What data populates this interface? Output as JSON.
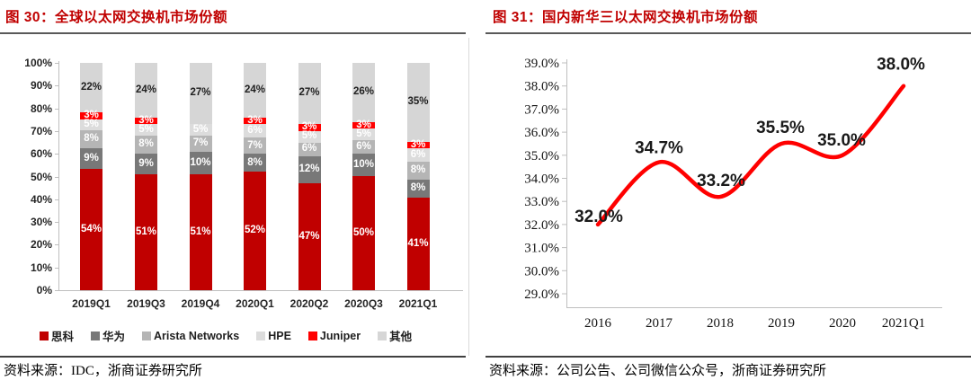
{
  "styles": {
    "title_color": "#C00000",
    "title_rule_color": "#595959",
    "footer_rule_color": "#404040",
    "axis_color": "#BFBFBF",
    "divider_color": "#D9D9D9",
    "tick_label_color": "#262626",
    "point_label_color": "#1A1A1A"
  },
  "chart_data": [
    {
      "type": "bar",
      "stacked": true,
      "percent": true,
      "title": "图 30：全球以太网交换机市场份额",
      "source": "资料来源：IDC，浙商证券研究所",
      "categories": [
        "2019Q1",
        "2019Q3",
        "2019Q4",
        "2020Q1",
        "2020Q2",
        "2020Q3",
        "2021Q1"
      ],
      "series": [
        {
          "name": "思科",
          "color": "#C00000",
          "label_color": "#FFFFFF",
          "values": [
            54,
            51,
            51,
            52,
            47,
            50,
            41
          ]
        },
        {
          "name": "华为",
          "color": "#787878",
          "label_color": "#FFFFFF",
          "values": [
            9,
            9,
            10,
            8,
            12,
            10,
            8
          ]
        },
        {
          "name": "Arista Networks",
          "color": "#B5B5B5",
          "label_color": "#FFFFFF",
          "values": [
            8,
            8,
            7,
            7,
            6,
            6,
            8
          ]
        },
        {
          "name": "HPE",
          "color": "#DCDCDC",
          "label_color": "#FFFFFF",
          "values": [
            5,
            5,
            5,
            6,
            5,
            5,
            6
          ]
        },
        {
          "name": "Juniper",
          "color": "#FF0000",
          "label_color": "#FFFFFF",
          "values": [
            3,
            3,
            0,
            3,
            3,
            3,
            3
          ]
        },
        {
          "name": "其他",
          "color": "#D6D6D6",
          "label_color": "#1F1F1F",
          "values": [
            22,
            24,
            27,
            24,
            27,
            26,
            35
          ]
        }
      ],
      "ylim": [
        0,
        100
      ],
      "yticks": [
        "0%",
        "10%",
        "20%",
        "30%",
        "40%",
        "50%",
        "60%",
        "70%",
        "80%",
        "90%",
        "100%"
      ],
      "grid": false,
      "legend_position": "bottom"
    },
    {
      "type": "line",
      "title": "图 31：国内新华三以太网交换机市场份额",
      "source": "资料来源：公司公告、公司微信公众号，浙商证券研究所",
      "x": [
        "2016",
        "2017",
        "2018",
        "2019",
        "2020",
        "2021Q1"
      ],
      "values": [
        32.0,
        34.7,
        33.2,
        35.5,
        35.0,
        38.0
      ],
      "point_labels": [
        "32.0%",
        "34.7%",
        "33.2%",
        "35.5%",
        "35.0%",
        "38.0%"
      ],
      "ylim": [
        29.0,
        39.0
      ],
      "yticks": [
        "29.0%",
        "30.0%",
        "31.0%",
        "32.0%",
        "33.0%",
        "34.0%",
        "35.0%",
        "36.0%",
        "37.0%",
        "38.0%",
        "39.0%"
      ],
      "line_color": "#FF0000",
      "smooth": true,
      "grid": false,
      "legend_position": "none"
    }
  ]
}
